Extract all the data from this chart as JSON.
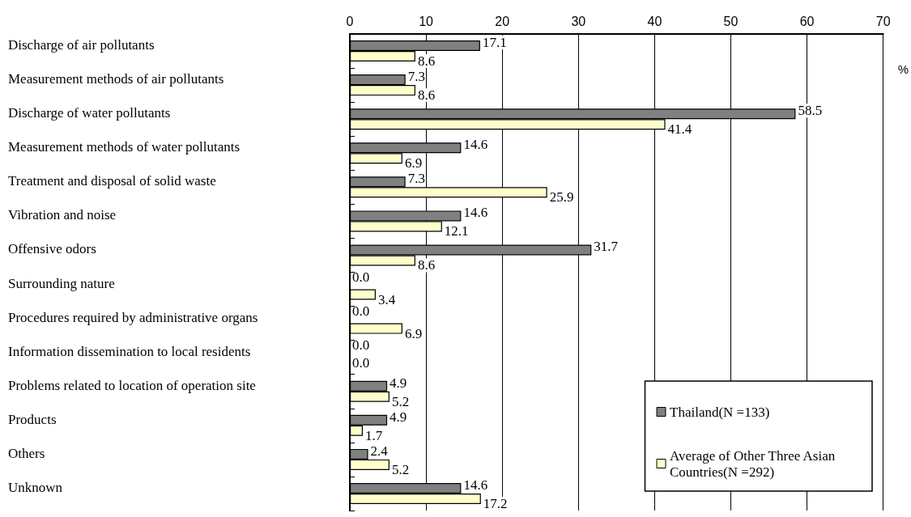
{
  "chart_data": {
    "type": "bar",
    "orientation": "horizontal",
    "xlabel": "%",
    "categories": [
      "Discharge of air pollutants",
      "Measurement methods of air pollutants",
      "Discharge of water pollutants",
      "Measurement methods of water pollutants",
      "Treatment and disposal of solid waste",
      "Vibration and noise",
      "Offensive odors",
      "Surrounding nature",
      "Procedures required by administrative organs",
      "Information dissemination to local residents",
      "Problems related to location of operation site",
      "Products",
      "Others",
      "Unknown"
    ],
    "series": [
      {
        "name": "Thailand(N =133)",
        "color": "#808080",
        "values": [
          17.1,
          7.3,
          58.5,
          14.6,
          7.3,
          14.6,
          31.7,
          0.0,
          0.0,
          0.0,
          4.9,
          4.9,
          2.4,
          14.6
        ],
        "value_labels": [
          "17.1",
          "7.3",
          "58.5",
          "14.6",
          "7.3",
          "14.6",
          "31.7",
          "0.0",
          "0.0",
          "0.0",
          "4.9",
          "4.9",
          "2.4",
          "14.6"
        ]
      },
      {
        "name": "Average of Other Three Asian Countries(N =292)",
        "color": "#ffffcc",
        "values": [
          8.6,
          8.6,
          41.4,
          6.9,
          25.9,
          12.1,
          8.6,
          3.4,
          6.9,
          0.0,
          5.2,
          1.7,
          5.2,
          17.2
        ],
        "value_labels": [
          "8.6",
          "8.6",
          "41.4",
          "6.9",
          "25.9",
          "12.1",
          "8.6",
          "3.4",
          "6.9",
          "0.0",
          "5.2",
          "1.7",
          "5.2",
          "17.2"
        ]
      }
    ],
    "xlim": [
      0,
      70
    ],
    "xticks": [
      0,
      10,
      20,
      30,
      40,
      50,
      60,
      70
    ],
    "grid": "x",
    "legend": "bottom right"
  }
}
